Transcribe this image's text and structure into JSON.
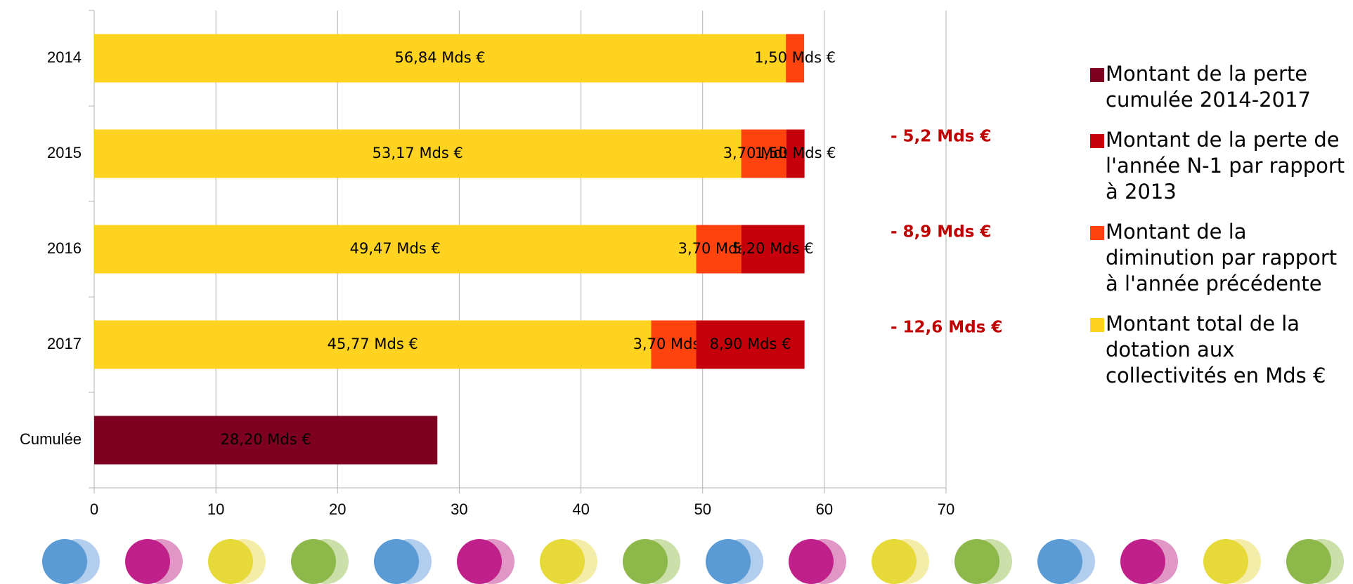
{
  "chart_data": {
    "type": "stacked_hbar",
    "categories": [
      "2014",
      "2015",
      "2016",
      "2017",
      "Cumulée"
    ],
    "series": [
      {
        "name": "Montant total de la dotation aux collectivités en Mds €",
        "color": "#ffd320",
        "values": [
          56.84,
          53.17,
          49.47,
          45.77,
          null
        ],
        "value_labels": [
          "56,84 Mds €",
          "53,17 Mds €",
          "49,47 Mds €",
          "45,77 Mds €",
          null
        ]
      },
      {
        "name": "Montant de la diminution par rapport à l'année précédente",
        "color": "#ff420e",
        "values": [
          1.5,
          3.7,
          3.7,
          3.7,
          null
        ],
        "value_labels": [
          "1,50 Mds €",
          "3,70 Mds €",
          "3,70 Mds €",
          "3,70 Mds €",
          null
        ]
      },
      {
        "name": "Montant de la perte de l'année N-1 par rapport à 2013",
        "color": "#c5000b",
        "values": [
          null,
          1.5,
          5.2,
          8.9,
          null
        ],
        "value_labels": [
          null,
          "1,50 Mds €",
          "5,20 Mds €",
          "8,90 Mds €",
          null
        ]
      },
      {
        "name": "Montant de la perte cumulée 2014-2017",
        "color": "#7e0021",
        "values": [
          null,
          null,
          null,
          null,
          28.2
        ],
        "value_labels": [
          null,
          null,
          null,
          null,
          "28,20 Mds €"
        ]
      }
    ],
    "annotations": [
      null,
      "- 5,2  Mds €",
      "- 8,9 Mds €",
      "- 12,6 Mds €",
      null
    ],
    "annotation_color": "#c00000",
    "xlim": [
      0,
      70
    ],
    "xticks": [
      0,
      10,
      20,
      30,
      40,
      50,
      60,
      70
    ],
    "grid": true,
    "legend": "right"
  }
}
